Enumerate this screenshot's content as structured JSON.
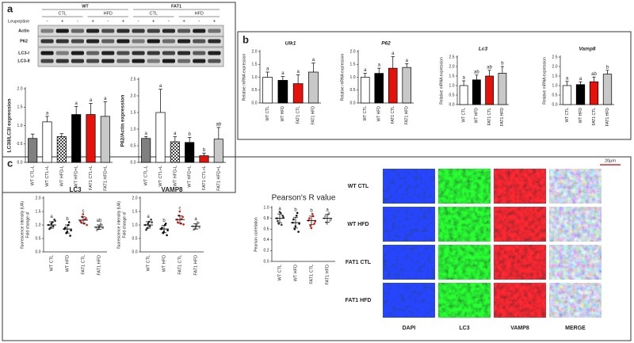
{
  "panels": [
    "a",
    "b",
    "c"
  ],
  "blot": {
    "groups": [
      "WT",
      "FAT1"
    ],
    "subgroups": [
      "CTL",
      "HFD",
      "CTL",
      "HFD"
    ],
    "treatment": "Leupeptine",
    "lanes": [
      "-",
      "+",
      "-",
      "+",
      "-",
      "+",
      "-",
      "+",
      "-",
      "+",
      "-",
      "+"
    ],
    "rows": [
      "Actin",
      "P62",
      "LC3-I",
      "LC3-II"
    ]
  },
  "micrographs": {
    "scale_bar": "20μm",
    "rows": [
      "WT CTL",
      "WT HFD",
      "FAT1 CTL",
      "FAT1 HFD"
    ],
    "columns": [
      "DAPI",
      "LC3",
      "VAMP8",
      "MERGE"
    ],
    "column_colors": [
      "#1f5fbf",
      "#3aa02a",
      "#d01010",
      "#111111"
    ]
  },
  "chart_data": [
    {
      "type": "bar",
      "y_label": "LC3II/LC3I expression",
      "categories": [
        "WT CTL-L",
        "WT CTL+L",
        "WT HFD-L",
        "WT HFD+L",
        "FAT1 CTL+L",
        "FAT1 HFD+L"
      ],
      "values": [
        0.65,
        1.1,
        0.7,
        1.3,
        1.3,
        1.25
      ],
      "errors": [
        0.12,
        0.15,
        0.08,
        0.22,
        0.3,
        0.4
      ],
      "letters": [
        null,
        "a",
        null,
        "a",
        "a",
        "a"
      ],
      "colors": [
        "#808080",
        "#ffffff",
        "#ffffff",
        "#000000",
        "#e3120b",
        "#c8c8c8"
      ],
      "patterns": [
        null,
        null,
        "checker",
        null,
        null,
        null
      ],
      "ylim": [
        0,
        2
      ],
      "yticks": [
        {
          "value": 0,
          "label": "0.0"
        },
        {
          "value": 0.5,
          "label": "0.5"
        },
        {
          "value": 1,
          "label": "1.0"
        },
        {
          "value": 1.5,
          "label": "1.5"
        },
        {
          "value": 2,
          "label": "2.0"
        }
      ]
    },
    {
      "type": "bar",
      "y_label": "P62/Actin expression",
      "categories": [
        "WT CTL-L",
        "WT CTL+L",
        "WT HFD-L",
        "WT HFD+L",
        "FAT1 CTL+L",
        "FAT1 HFD+L"
      ],
      "values": [
        0.72,
        1.5,
        0.62,
        0.6,
        0.2,
        0.7
      ],
      "errors": [
        0.06,
        0.7,
        0.15,
        0.15,
        0.08,
        0.35
      ],
      "letters": [
        "a",
        "a",
        "a",
        "b",
        "b",
        "ab"
      ],
      "colors": [
        "#808080",
        "#ffffff",
        "#ffffff",
        "#000000",
        "#e3120b",
        "#c8c8c8"
      ],
      "patterns": [
        null,
        null,
        "checker",
        null,
        null,
        null
      ],
      "ylim": [
        0,
        2.5
      ],
      "yticks": [
        {
          "value": 0,
          "label": "0.0"
        },
        {
          "value": 0.5,
          "label": "0.5"
        },
        {
          "value": 1,
          "label": "1.0"
        },
        {
          "value": 1.5,
          "label": "1.5"
        },
        {
          "value": 2,
          "label": "2.0"
        },
        {
          "value": 2.5,
          "label": "2.5"
        }
      ]
    },
    {
      "type": "bar",
      "title": "Ulk1",
      "y_label": "Relative mRNA expression",
      "categories": [
        "WT CTL",
        "WT HFD",
        "FAT1 CTL",
        "FAT1 HFD"
      ],
      "values": [
        1.0,
        0.88,
        0.75,
        1.2
      ],
      "errors": [
        0.2,
        0.15,
        0.35,
        0.35
      ],
      "letters": [
        "a",
        "a",
        "a",
        "a"
      ],
      "colors": [
        "#ffffff",
        "#000000",
        "#e3120b",
        "#c8c8c8"
      ],
      "ylim": [
        0,
        2
      ],
      "yticks": [
        {
          "value": 0,
          "label": "0.0"
        },
        {
          "value": 0.5,
          "label": "0.5"
        },
        {
          "value": 1,
          "label": "1.0"
        },
        {
          "value": 1.5,
          "label": "1.5"
        },
        {
          "value": 2,
          "label": "2.0"
        }
      ]
    },
    {
      "type": "bar",
      "title": "P62",
      "y_label": "Relative mRNA expression",
      "categories": [
        "WT CTL",
        "WT HFD",
        "FAT1 CTL",
        "FAT1 HFD"
      ],
      "values": [
        1.0,
        1.15,
        1.35,
        1.38
      ],
      "errors": [
        0.15,
        0.2,
        0.45,
        0.15
      ],
      "letters": [
        "a",
        "a",
        "a",
        "a"
      ],
      "colors": [
        "#ffffff",
        "#000000",
        "#e3120b",
        "#c8c8c8"
      ],
      "ylim": [
        0,
        2
      ],
      "yticks": [
        {
          "value": 0,
          "label": "0.0"
        },
        {
          "value": 0.5,
          "label": "0.5"
        },
        {
          "value": 1,
          "label": "1.0"
        },
        {
          "value": 1.5,
          "label": "1.5"
        },
        {
          "value": 2,
          "label": "2.0"
        }
      ]
    },
    {
      "type": "bar",
      "title": "Lc3",
      "y_label": "Relative mRNA expression",
      "categories": [
        "WT CTL",
        "WT HFD",
        "FAT1 CTL",
        "FAT1 HFD"
      ],
      "values": [
        1.0,
        1.3,
        1.5,
        1.65
      ],
      "errors": [
        0.25,
        0.25,
        0.3,
        0.35
      ],
      "letters": [
        "a",
        "ab",
        "ab",
        "b"
      ],
      "colors": [
        "#ffffff",
        "#000000",
        "#e3120b",
        "#c8c8c8"
      ],
      "ylim": [
        0,
        2.5
      ],
      "yticks": [
        {
          "value": 0,
          "label": "0.0"
        },
        {
          "value": 0.5,
          "label": "0.5"
        },
        {
          "value": 1,
          "label": "1.0"
        },
        {
          "value": 1.5,
          "label": "1.5"
        },
        {
          "value": 2,
          "label": "2.0"
        },
        {
          "value": 2.5,
          "label": "2.5"
        }
      ]
    },
    {
      "type": "bar",
      "title": "Vamp8",
      "y_label": "Relative mRNA expression",
      "categories": [
        "WT CTL",
        "WT HFD",
        "FAT1 CTL",
        "FAT1 HFD"
      ],
      "values": [
        1.0,
        1.05,
        1.2,
        1.6
      ],
      "errors": [
        0.22,
        0.15,
        0.25,
        0.2
      ],
      "letters": [
        "a",
        "a",
        "ab",
        "b"
      ],
      "colors": [
        "#ffffff",
        "#000000",
        "#e3120b",
        "#c8c8c8"
      ],
      "ylim": [
        0,
        2.5
      ],
      "yticks": [
        {
          "value": 0,
          "label": "0.0"
        },
        {
          "value": 0.5,
          "label": "0.5"
        },
        {
          "value": 1,
          "label": "1.0"
        },
        {
          "value": 1.5,
          "label": "1.5"
        },
        {
          "value": 2,
          "label": "2.0"
        },
        {
          "value": 2.5,
          "label": "2.5"
        }
      ]
    },
    {
      "type": "dot",
      "title": "LC3",
      "y_label": [
        "Fold change of",
        "fluorescence intensity (UA)"
      ],
      "categories": [
        "WT CTL",
        "WT HFD",
        "FAT1 CTL",
        "FAT1 HFD"
      ],
      "values": [
        1.0,
        0.85,
        1.18,
        0.92
      ],
      "errors": [
        0.12,
        0.15,
        0.12,
        0.08
      ],
      "letters": [
        "a",
        "b",
        "c",
        "ab"
      ],
      "points": [
        [
          1.0,
          0.9,
          1.1,
          1.2,
          0.85,
          1.05,
          0.95,
          1.15
        ],
        [
          0.85,
          0.7,
          1.0,
          0.6,
          0.9,
          0.75,
          1.1,
          0.8
        ],
        [
          1.15,
          1.3,
          1.05,
          1.25,
          1.1,
          1.4,
          1.2,
          1.0
        ],
        [
          0.9,
          0.85,
          0.95,
          1.0,
          0.8,
          0.92,
          1.05,
          0.88
        ]
      ],
      "colors": [
        "#333333",
        "#111111",
        "#e3120b",
        "#999999"
      ],
      "ylim": [
        0,
        2
      ],
      "yticks": [
        {
          "value": 0,
          "label": "0.0"
        },
        {
          "value": 0.5,
          "label": "0.5"
        },
        {
          "value": 1,
          "label": "1.0"
        },
        {
          "value": 1.5,
          "label": "1.5"
        },
        {
          "value": 2,
          "label": "2.0"
        }
      ]
    },
    {
      "type": "dot",
      "title": "VAMP8",
      "y_label": [
        "Fold change of",
        "fluorescence intensity (UA)"
      ],
      "categories": [
        "WT CTL",
        "WT HFD",
        "FAT1 CTL",
        "FAT1 HFD"
      ],
      "values": [
        1.0,
        0.85,
        1.2,
        0.95
      ],
      "errors": [
        0.12,
        0.14,
        0.14,
        0.1
      ],
      "letters": [
        "a",
        "b",
        "c",
        "a"
      ],
      "points": [
        [
          1.0,
          0.88,
          1.12,
          1.2,
          0.82,
          1.05,
          0.95,
          1.1
        ],
        [
          0.85,
          0.7,
          1.0,
          0.62,
          0.9,
          0.75,
          1.05,
          0.8
        ],
        [
          1.2,
          1.35,
          1.05,
          1.3,
          1.1,
          1.5,
          1.22,
          1.02
        ],
        [
          0.95,
          0.85,
          1.0,
          1.08,
          0.82,
          0.92,
          1.1,
          0.9
        ]
      ],
      "colors": [
        "#333333",
        "#111111",
        "#e3120b",
        "#999999"
      ],
      "ylim": [
        0,
        2
      ],
      "yticks": [
        {
          "value": 0,
          "label": "0.0"
        },
        {
          "value": 0.5,
          "label": "0.5"
        },
        {
          "value": 1,
          "label": "1.0"
        },
        {
          "value": 1.5,
          "label": "1.5"
        },
        {
          "value": 2,
          "label": "2.0"
        }
      ]
    },
    {
      "type": "dot",
      "title": "Pearson's R value",
      "y_label": [
        "Pearson correlation"
      ],
      "categories": [
        "WT CTL",
        "WT HFD",
        "FAT1 CTL",
        "FAT1 HFD"
      ],
      "values": [
        0.8,
        0.72,
        0.76,
        0.8
      ],
      "errors": [
        0.08,
        0.1,
        0.08,
        0.07
      ],
      "letters": [
        "a",
        "b",
        "b",
        "a"
      ],
      "points": [
        [
          0.8,
          0.7,
          0.9,
          0.85,
          0.75,
          0.92,
          0.68,
          0.82
        ],
        [
          0.72,
          0.6,
          0.85,
          0.55,
          0.78,
          0.65,
          0.9,
          0.7
        ],
        [
          0.76,
          0.66,
          0.88,
          0.7,
          0.8,
          0.62,
          0.84,
          0.74
        ],
        [
          0.8,
          0.72,
          0.88,
          0.76,
          0.84,
          0.7,
          0.9,
          0.78
        ]
      ],
      "colors": [
        "#333333",
        "#111111",
        "#e3120b",
        "#999999"
      ],
      "ylim": [
        0,
        1
      ],
      "yticks": [
        {
          "value": 0,
          "label": "0.0"
        },
        {
          "value": 0.2,
          "label": "0.2"
        },
        {
          "value": 0.4,
          "label": "0.4"
        },
        {
          "value": 0.6,
          "label": "0.6"
        },
        {
          "value": 0.8,
          "label": "0.8"
        },
        {
          "value": 1,
          "label": "1.0"
        }
      ]
    }
  ]
}
